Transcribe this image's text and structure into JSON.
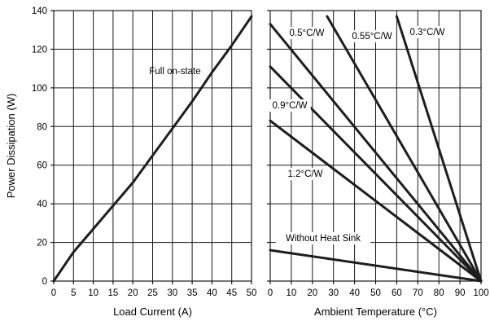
{
  "chart_data": [
    {
      "type": "line",
      "title": "",
      "xlabel": "Load Current (A)",
      "ylabel": "Power Dissipation (W)",
      "xlim": [
        0,
        50
      ],
      "ylim": [
        0,
        140
      ],
      "xticks": [
        "0",
        "5",
        "10",
        "15",
        "20",
        "25",
        "30",
        "35",
        "40",
        "45",
        "50"
      ],
      "yticks": [
        "0",
        "20",
        "40",
        "60",
        "80",
        "100",
        "120",
        "140"
      ],
      "grid": true,
      "annotations": [
        "Full on-state"
      ],
      "series": [
        {
          "name": "Full on-state",
          "x": [
            0,
            5,
            10,
            15,
            20,
            25,
            30,
            35,
            40,
            45,
            50
          ],
          "y": [
            0,
            15,
            27,
            39,
            51,
            65,
            79,
            93,
            108,
            122,
            137
          ]
        }
      ]
    },
    {
      "type": "line",
      "title": "",
      "xlabel": "Ambient Temperature (°C)",
      "ylabel": "",
      "xlim": [
        0,
        100
      ],
      "ylim": [
        0,
        140
      ],
      "xticks": [
        "0",
        "10",
        "20",
        "30",
        "40",
        "50",
        "60",
        "70",
        "80",
        "90",
        "100"
      ],
      "grid": true,
      "series": [
        {
          "name": "0.3°C/W",
          "x": [
            60,
            100
          ],
          "y": [
            137,
            0
          ]
        },
        {
          "name": "0.55°C/W",
          "x": [
            27,
            100
          ],
          "y": [
            137,
            0
          ]
        },
        {
          "name": "0.5°C/W",
          "x": [
            0,
            100
          ],
          "y": [
            133,
            0
          ]
        },
        {
          "name": "0.9°C/W",
          "x": [
            0,
            100
          ],
          "y": [
            111,
            0
          ]
        },
        {
          "name": "1.2°C/W",
          "x": [
            0,
            100
          ],
          "y": [
            83,
            0
          ]
        },
        {
          "name": "Without Heat Sink",
          "x": [
            0,
            100
          ],
          "y": [
            16,
            0
          ]
        }
      ]
    }
  ]
}
